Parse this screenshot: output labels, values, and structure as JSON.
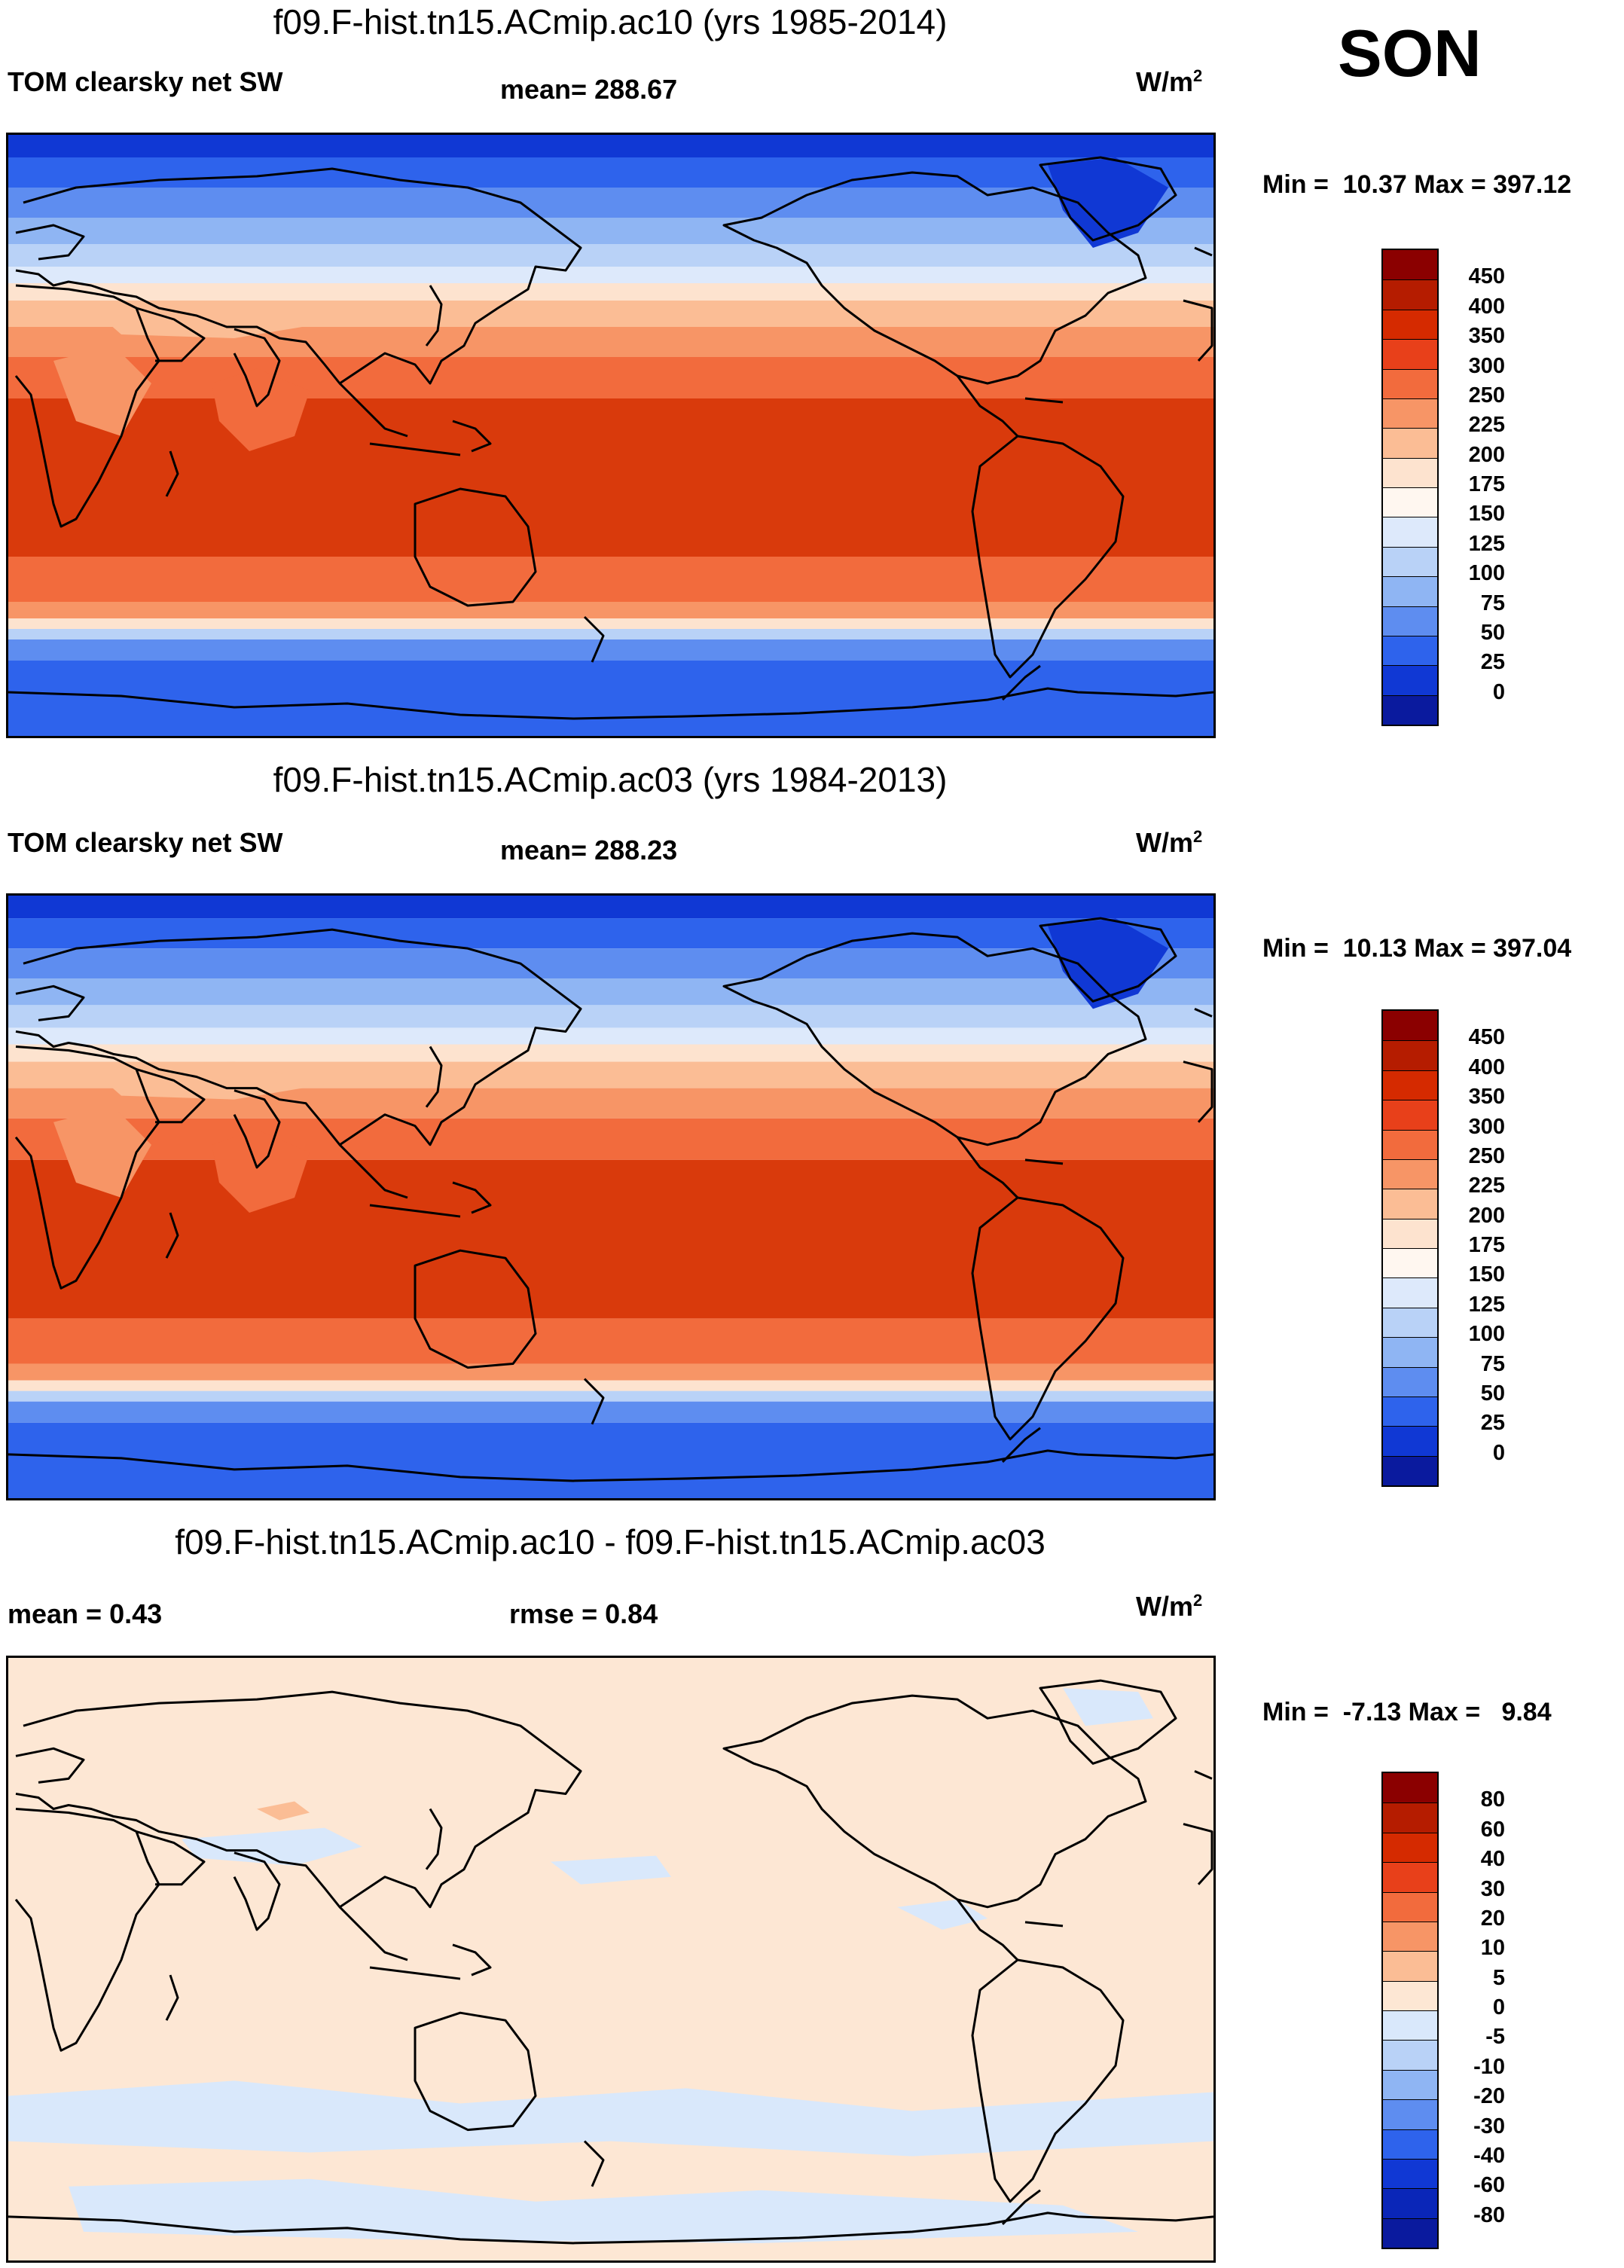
{
  "season": "SON",
  "units_base": "W/m",
  "units_exp": "2",
  "panels": [
    {
      "title": "f09.F-hist.tn15.ACmip.ac10 (yrs 1985-2014)",
      "left_label": "TOM clearsky net SW",
      "center_label": "mean= 288.67",
      "minmax": "Min =  10.37 Max = 397.12",
      "field": "sw"
    },
    {
      "title": "f09.F-hist.tn15.ACmip.ac03 (yrs 1984-2013)",
      "left_label": "TOM clearsky net SW",
      "center_label": "mean= 288.23",
      "minmax": "Min =  10.13 Max = 397.04",
      "field": "sw"
    },
    {
      "title": "f09.F-hist.tn15.ACmip.ac10 - f09.F-hist.tn15.ACmip.ac03",
      "left_label": "mean =   0.43",
      "center_label": "rmse =   0.84",
      "minmax": "Min =  -7.13 Max =   9.84",
      "field": "diff"
    }
  ],
  "colorbars": {
    "sw": {
      "labels": [
        "450",
        "400",
        "350",
        "300",
        "250",
        "225",
        "200",
        "175",
        "150",
        "125",
        "100",
        "75",
        "50",
        "25",
        "0"
      ],
      "colors": [
        "#8b0000",
        "#b51c00",
        "#d52a00",
        "#e8401a",
        "#f26b3d",
        "#f79566",
        "#fbbd95",
        "#fde3cf",
        "#fff7f0",
        "#dde9fb",
        "#b9d2f7",
        "#8fb5f3",
        "#5e8df0",
        "#2e63ec",
        "#1038d4",
        "#0a1a9e"
      ]
    },
    "diff": {
      "labels": [
        "80",
        "60",
        "40",
        "30",
        "20",
        "10",
        "5",
        "0",
        "-5",
        "-10",
        "-20",
        "-30",
        "-40",
        "-60",
        "-80"
      ],
      "colors": [
        "#8b0000",
        "#b51c00",
        "#d52a00",
        "#e8401a",
        "#f26b3d",
        "#f79566",
        "#fbbd95",
        "#fde7d4",
        "#d9e8fb",
        "#b9d2f7",
        "#8fb5f3",
        "#5e8df0",
        "#2e63ec",
        "#1038d4",
        "#0a26b8",
        "#0a1a9e"
      ]
    }
  }
}
